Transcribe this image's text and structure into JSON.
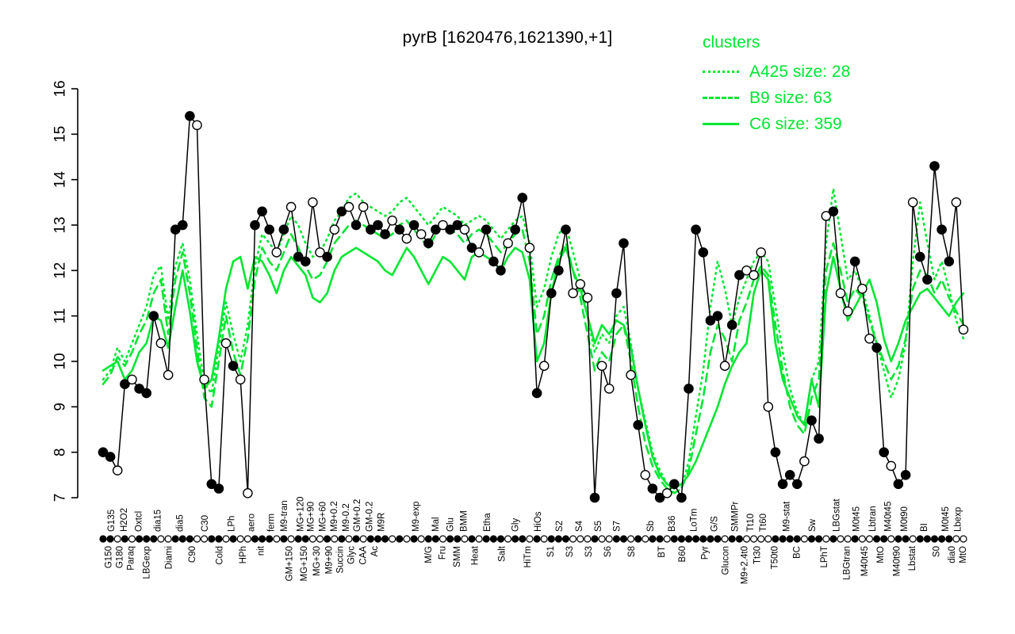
{
  "header": {
    "title": "pyrB [1620476,1621390,+1]"
  },
  "legend": {
    "title": "clusters",
    "color": "#00e632",
    "entries": [
      {
        "label": "A425 size: 28",
        "style": "dotted"
      },
      {
        "label": "B9 size: 63",
        "style": "dashed"
      },
      {
        "label": "C6 size: 359",
        "style": "solid"
      }
    ]
  },
  "chart_data": {
    "type": "line",
    "title": "pyrB [1620476,1621390,+1]",
    "xlabel": "",
    "ylabel": "",
    "ylim": [
      7,
      16
    ],
    "yticks": [
      7,
      8,
      9,
      10,
      11,
      12,
      13,
      14,
      15,
      16
    ],
    "grid": false,
    "legend_position": "top-right",
    "series": [
      {
        "key": "gene",
        "name": "pyrB expression profile",
        "color": "#000000",
        "style": "solid",
        "markers": true,
        "values": [
          8.0,
          7.9,
          7.6,
          9.5,
          9.6,
          9.4,
          9.3,
          11.0,
          10.4,
          9.7,
          12.9,
          13.0,
          15.4,
          15.2,
          9.6,
          7.3,
          7.2,
          10.4,
          9.9,
          9.6,
          7.1,
          13.0,
          13.3,
          12.9,
          12.4,
          12.9,
          13.4,
          12.3,
          12.2,
          13.5,
          12.4,
          12.3,
          12.9,
          13.3,
          13.4,
          13.0,
          13.4,
          12.9,
          13.0,
          12.8,
          13.1,
          12.9,
          12.7,
          13.0,
          12.8,
          12.6,
          12.9,
          13.0,
          12.9,
          13.0,
          12.9,
          12.5,
          12.4,
          12.9,
          12.2,
          12.0,
          12.6,
          12.9,
          13.6,
          12.5,
          9.3,
          9.9,
          11.5,
          12.0,
          12.9,
          11.5,
          11.7,
          11.4,
          7.0,
          9.9,
          9.4,
          11.5,
          12.6,
          9.7,
          8.6,
          7.5,
          7.2,
          7.0,
          7.1,
          7.3,
          7.0,
          9.4,
          12.9,
          12.4,
          10.9,
          11.0,
          9.9,
          10.8,
          11.9,
          12.0,
          11.9,
          12.4,
          9.0,
          8.0,
          7.3,
          7.5,
          7.3,
          7.8,
          8.7,
          8.3,
          13.2,
          13.3,
          11.5,
          11.1,
          12.2,
          11.6,
          10.5,
          10.3,
          8.0,
          7.7,
          7.3,
          7.5,
          13.5,
          12.3,
          11.8,
          14.3,
          12.9,
          12.2,
          13.5,
          10.7
        ]
      },
      {
        "key": "A425",
        "name": "A425 size: 28",
        "color": "#00e632",
        "style": "dotted",
        "markers": false,
        "values": [
          9.6,
          9.8,
          10.3,
          10.0,
          10.4,
          10.8,
          11.2,
          11.9,
          12.1,
          10.9,
          12.1,
          12.6,
          11.8,
          10.6,
          9.5,
          9.3,
          10.3,
          11.3,
          10.6,
          10.0,
          10.8,
          12.1,
          12.8,
          12.6,
          12.4,
          12.8,
          13.2,
          13.0,
          12.6,
          12.3,
          12.4,
          12.7,
          13.1,
          13.3,
          13.6,
          13.7,
          13.5,
          13.4,
          13.3,
          13.2,
          13.3,
          13.5,
          13.6,
          13.4,
          13.2,
          13.0,
          13.2,
          13.4,
          13.3,
          13.2,
          13.0,
          13.1,
          13.2,
          13.1,
          12.9,
          12.7,
          12.9,
          13.1,
          13.2,
          12.6,
          11.2,
          11.6,
          12.3,
          12.8,
          13.0,
          12.4,
          11.8,
          11.0,
          10.2,
          10.6,
          10.4,
          11.0,
          11.2,
          10.4,
          9.4,
          8.7,
          8.0,
          7.6,
          7.3,
          7.1,
          7.2,
          7.8,
          8.8,
          9.8,
          11.2,
          12.2,
          11.6,
          10.8,
          11.4,
          11.8,
          12.2,
          12.4,
          12.2,
          11.2,
          10.2,
          9.4,
          8.9,
          8.6,
          9.6,
          10.0,
          12.6,
          13.8,
          12.8,
          11.8,
          12.0,
          11.6,
          11.0,
          10.4,
          9.8,
          9.2,
          9.6,
          10.4,
          12.2,
          13.5,
          12.6,
          11.8,
          12.2,
          11.6,
          10.9,
          10.5
        ]
      },
      {
        "key": "B9",
        "name": "B9 size: 63",
        "color": "#00e632",
        "style": "dashed",
        "markers": false,
        "values": [
          9.5,
          9.7,
          10.1,
          9.9,
          10.2,
          10.6,
          10.9,
          11.5,
          11.8,
          10.6,
          11.8,
          12.4,
          11.5,
          10.3,
          9.2,
          9.0,
          10.0,
          11.0,
          10.2,
          9.7,
          10.5,
          11.8,
          12.5,
          12.2,
          12.0,
          12.4,
          12.8,
          12.5,
          12.1,
          11.8,
          11.9,
          12.2,
          12.6,
          12.8,
          13.0,
          13.1,
          13.0,
          12.9,
          12.8,
          12.7,
          12.8,
          13.0,
          13.1,
          12.9,
          12.7,
          12.5,
          12.8,
          13.0,
          12.9,
          12.8,
          12.6,
          12.8,
          12.9,
          12.8,
          12.6,
          12.4,
          12.6,
          12.8,
          12.9,
          12.2,
          10.6,
          11.0,
          11.8,
          12.3,
          12.6,
          12.0,
          11.4,
          10.6,
          9.8,
          10.2,
          10.0,
          10.6,
          10.8,
          10.0,
          9.0,
          8.2,
          7.7,
          7.4,
          7.2,
          7.1,
          7.2,
          7.6,
          8.4,
          9.2,
          10.2,
          10.8,
          10.5,
          10.0,
          10.9,
          11.3,
          11.8,
          12.1,
          11.9,
          10.8,
          9.8,
          9.0,
          8.6,
          8.4,
          9.2,
          9.6,
          12.0,
          12.6,
          12.0,
          11.3,
          11.6,
          11.4,
          10.9,
          10.4,
          10.0,
          9.6,
          9.9,
          10.5,
          11.6,
          12.0,
          11.9,
          11.5,
          11.8,
          11.4,
          11.1,
          10.8
        ]
      },
      {
        "key": "C6",
        "name": "C6 size: 359",
        "color": "#00e632",
        "style": "solid",
        "markers": false,
        "values": [
          9.8,
          9.9,
          10.0,
          9.6,
          9.8,
          10.2,
          10.4,
          11.0,
          10.9,
          10.3,
          11.2,
          12.0,
          11.1,
          10.0,
          9.4,
          9.6,
          10.5,
          11.6,
          12.2,
          12.3,
          11.6,
          12.3,
          12.2,
          11.9,
          11.5,
          12.0,
          12.3,
          12.1,
          11.9,
          11.4,
          11.3,
          11.5,
          12.0,
          12.3,
          12.4,
          12.5,
          12.4,
          12.3,
          12.2,
          12.0,
          11.9,
          12.2,
          12.5,
          12.3,
          12.0,
          11.7,
          12.0,
          12.3,
          12.2,
          12.0,
          11.8,
          12.3,
          12.4,
          12.3,
          12.2,
          12.0,
          12.3,
          12.5,
          12.4,
          11.8,
          10.0,
          10.4,
          11.5,
          12.2,
          12.5,
          12.0,
          11.6,
          11.0,
          10.4,
          10.8,
          10.6,
          10.9,
          10.8,
          10.3,
          9.4,
          8.6,
          7.9,
          7.5,
          7.3,
          7.2,
          7.3,
          7.5,
          7.8,
          8.2,
          8.6,
          9.0,
          9.5,
          9.9,
          10.2,
          10.4,
          11.5,
          12.0,
          11.8,
          10.4,
          9.6,
          9.2,
          8.8,
          8.6,
          9.6,
          9.0,
          11.5,
          12.3,
          11.6,
          10.9,
          11.2,
          11.5,
          11.8,
          11.3,
          10.5,
          10.0,
          10.4,
          10.9,
          11.2,
          11.5,
          11.6,
          11.4,
          11.2,
          11.0,
          11.3,
          11.5
        ]
      }
    ],
    "marker_fill": [
      "f",
      "f",
      "o",
      "f",
      "o",
      "f",
      "f",
      "f",
      "o",
      "o",
      "f",
      "f",
      "f",
      "o",
      "o",
      "f",
      "f",
      "o",
      "f",
      "o",
      "o",
      "f",
      "f",
      "f",
      "o",
      "f",
      "o",
      "f",
      "f",
      "o",
      "o",
      "f",
      "o",
      "f",
      "o",
      "f",
      "o",
      "f",
      "f",
      "f",
      "o",
      "f",
      "o",
      "f",
      "o",
      "f",
      "f",
      "o",
      "f",
      "f",
      "o",
      "f",
      "o",
      "f",
      "f",
      "f",
      "o",
      "f",
      "f",
      "o",
      "f",
      "o",
      "f",
      "f",
      "f",
      "o",
      "o",
      "o",
      "f",
      "o",
      "o",
      "f",
      "f",
      "o",
      "f",
      "o",
      "f",
      "f",
      "o",
      "f",
      "f",
      "f",
      "f",
      "f",
      "f",
      "f",
      "o",
      "f",
      "f",
      "o",
      "o",
      "o",
      "o",
      "f",
      "f",
      "f",
      "f",
      "o",
      "f",
      "f",
      "o",
      "f",
      "o",
      "o",
      "f",
      "o",
      "o",
      "f",
      "f",
      "o",
      "f",
      "f",
      "o",
      "f",
      "f",
      "f",
      "f",
      "f",
      "o",
      "o"
    ],
    "x_axis_labels": [
      {
        "t": "G135",
        "r": 1,
        "p": 0.009
      },
      {
        "t": "G150",
        "r": 2,
        "p": 0.006
      },
      {
        "t": "G180",
        "r": 2,
        "p": 0.019
      },
      {
        "t": "H2O2",
        "r": 1,
        "p": 0.024
      },
      {
        "t": "Paraq",
        "r": 2,
        "p": 0.032
      },
      {
        "t": "Oxtcl",
        "r": 1,
        "p": 0.041
      },
      {
        "t": "LBGexp",
        "r": 2,
        "p": 0.05
      },
      {
        "t": "dia15",
        "r": 1,
        "p": 0.063
      },
      {
        "t": "Diami",
        "r": 2,
        "p": 0.076
      },
      {
        "t": "dia5",
        "r": 1,
        "p": 0.089
      },
      {
        "t": "C90",
        "r": 2,
        "p": 0.103
      },
      {
        "t": "C30",
        "r": 1,
        "p": 0.118
      },
      {
        "t": "Cold",
        "r": 2,
        "p": 0.135
      },
      {
        "t": "LPh",
        "r": 1,
        "p": 0.149
      },
      {
        "t": "HPh",
        "r": 2,
        "p": 0.162
      },
      {
        "t": "aero",
        "r": 1,
        "p": 0.172
      },
      {
        "t": "nit",
        "r": 2,
        "p": 0.183
      },
      {
        "t": "ferm",
        "r": 1,
        "p": 0.195
      },
      {
        "t": "M9-tran",
        "r": 1,
        "p": 0.21
      },
      {
        "t": "GM+150",
        "r": 2,
        "p": 0.216
      },
      {
        "t": "MG+120",
        "r": 1,
        "p": 0.229
      },
      {
        "t": "MG+150",
        "r": 2,
        "p": 0.233
      },
      {
        "t": "MG+90",
        "r": 1,
        "p": 0.241
      },
      {
        "t": "MG+30",
        "r": 2,
        "p": 0.248
      },
      {
        "t": "MG+60",
        "r": 1,
        "p": 0.255
      },
      {
        "t": "M9+90",
        "r": 2,
        "p": 0.262
      },
      {
        "t": "M9+0.2",
        "r": 1,
        "p": 0.268
      },
      {
        "t": "Succin",
        "r": 2,
        "p": 0.275
      },
      {
        "t": "M9-0.2",
        "r": 1,
        "p": 0.282
      },
      {
        "t": "Glyc",
        "r": 2,
        "p": 0.288
      },
      {
        "t": "GM+0.2",
        "r": 1,
        "p": 0.295
      },
      {
        "t": "CAA",
        "r": 2,
        "p": 0.302
      },
      {
        "t": "GM-0.2",
        "r": 1,
        "p": 0.309
      },
      {
        "t": "Ac",
        "r": 2,
        "p": 0.315
      },
      {
        "t": "M9R",
        "r": 1,
        "p": 0.323
      },
      {
        "t": "M9-exp",
        "r": 1,
        "p": 0.363
      },
      {
        "t": "M/G",
        "r": 2,
        "p": 0.378
      },
      {
        "t": "Mal",
        "r": 1,
        "p": 0.386
      },
      {
        "t": "Fru",
        "r": 2,
        "p": 0.394
      },
      {
        "t": "Glu",
        "r": 1,
        "p": 0.403
      },
      {
        "t": "SMM",
        "r": 2,
        "p": 0.411
      },
      {
        "t": "BMM",
        "r": 1,
        "p": 0.419
      },
      {
        "t": "Heat",
        "r": 2,
        "p": 0.432
      },
      {
        "t": "Etha",
        "r": 1,
        "p": 0.446
      },
      {
        "t": "Salt",
        "r": 2,
        "p": 0.463
      },
      {
        "t": "Gly",
        "r": 1,
        "p": 0.479
      },
      {
        "t": "HiTm",
        "r": 2,
        "p": 0.493
      },
      {
        "t": "HiOs",
        "r": 1,
        "p": 0.505
      },
      {
        "t": "S1",
        "r": 2,
        "p": 0.52
      },
      {
        "t": "S2",
        "r": 1,
        "p": 0.53
      },
      {
        "t": "S3",
        "r": 2,
        "p": 0.542
      },
      {
        "t": "S4",
        "r": 1,
        "p": 0.553
      },
      {
        "t": "S3",
        "r": 2,
        "p": 0.564
      },
      {
        "t": "S5",
        "r": 1,
        "p": 0.575
      },
      {
        "t": "S6",
        "r": 2,
        "p": 0.586
      },
      {
        "t": "S7",
        "r": 1,
        "p": 0.597
      },
      {
        "t": "S8",
        "r": 2,
        "p": 0.614
      },
      {
        "t": "Sb",
        "r": 1,
        "p": 0.636
      },
      {
        "t": "BT",
        "r": 2,
        "p": 0.649
      },
      {
        "t": "B36",
        "r": 1,
        "p": 0.661
      },
      {
        "t": "B60",
        "r": 2,
        "p": 0.673
      },
      {
        "t": "LoTm",
        "r": 1,
        "p": 0.686
      },
      {
        "t": "Pyr",
        "r": 2,
        "p": 0.699
      },
      {
        "t": "G/S",
        "r": 1,
        "p": 0.71
      },
      {
        "t": "Glucon",
        "r": 2,
        "p": 0.723
      },
      {
        "t": "SMMPr",
        "r": 1,
        "p": 0.734
      },
      {
        "t": "M9+2.4t0",
        "r": 2,
        "p": 0.745
      },
      {
        "t": "Tt10",
        "r": 1,
        "p": 0.752
      },
      {
        "t": "Tt30",
        "r": 2,
        "p": 0.76
      },
      {
        "t": "Tt60",
        "r": 1,
        "p": 0.767
      },
      {
        "t": "T50t0",
        "r": 2,
        "p": 0.78
      },
      {
        "t": "M9-stat",
        "r": 1,
        "p": 0.794
      },
      {
        "t": "BC",
        "r": 2,
        "p": 0.806
      },
      {
        "t": "Sw",
        "r": 1,
        "p": 0.824
      },
      {
        "t": "LPhT",
        "r": 2,
        "p": 0.838
      },
      {
        "t": "LBGstat",
        "r": 1,
        "p": 0.852
      },
      {
        "t": "LBGtran",
        "r": 2,
        "p": 0.864
      },
      {
        "t": "M0t45",
        "r": 1,
        "p": 0.875
      },
      {
        "t": "M40t45",
        "r": 2,
        "p": 0.885
      },
      {
        "t": "Lbtran",
        "r": 1,
        "p": 0.894
      },
      {
        "t": "MtO",
        "r": 2,
        "p": 0.903
      },
      {
        "t": "M40t45",
        "r": 1,
        "p": 0.912
      },
      {
        "t": "M40t90",
        "r": 2,
        "p": 0.922
      },
      {
        "t": "M0t90",
        "r": 1,
        "p": 0.931
      },
      {
        "t": "Lbstat",
        "r": 2,
        "p": 0.94
      },
      {
        "t": "BI",
        "r": 1,
        "p": 0.954
      },
      {
        "t": "S0",
        "r": 2,
        "p": 0.968
      },
      {
        "t": "M0t45",
        "r": 1,
        "p": 0.979
      },
      {
        "t": "dia0",
        "r": 2,
        "p": 0.986
      },
      {
        "t": "Lbexp",
        "r": 1,
        "p": 0.993
      },
      {
        "t": "MtO",
        "r": 2,
        "p": 0.999
      }
    ]
  }
}
